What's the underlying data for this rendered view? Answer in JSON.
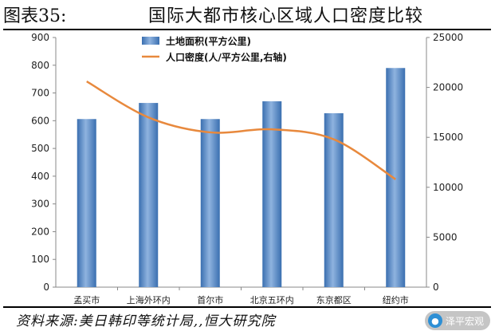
{
  "figure": {
    "number": "图表35:",
    "title": "国际大都市核心区域人口密度比较",
    "source": "资料来源:美日韩印等统计局,,恒大研究院",
    "watermark": "泽平宏观"
  },
  "icons": {
    "watermark": "wechat-icon"
  },
  "colors": {
    "bar": "#3a6fb0",
    "bar_light": "#8fb3df",
    "line": "#e8893d"
  },
  "chart_data": {
    "type": "bar",
    "categories": [
      "孟买市",
      "上海外环内",
      "首尔市",
      "北京五环内",
      "东京都区",
      "纽约市"
    ],
    "series": [
      {
        "name": "土地面积(平方公里)",
        "type": "bar",
        "axis": "left",
        "values": [
          606,
          664,
          606,
          670,
          627,
          790
        ]
      },
      {
        "name": "人口密度(人/平方公里,右轴)",
        "type": "line",
        "axis": "right",
        "values": [
          20600,
          17000,
          15500,
          15800,
          14800,
          10800
        ]
      }
    ],
    "yleft": {
      "range": [
        0,
        900
      ],
      "ticks": [
        "0",
        "100",
        "200",
        "300",
        "400",
        "500",
        "600",
        "700",
        "800",
        "900"
      ]
    },
    "yright": {
      "range": [
        0,
        25000
      ],
      "ticks": [
        "0",
        "5000",
        "10000",
        "15000",
        "20000",
        "25000"
      ]
    },
    "legend": "top-left"
  }
}
